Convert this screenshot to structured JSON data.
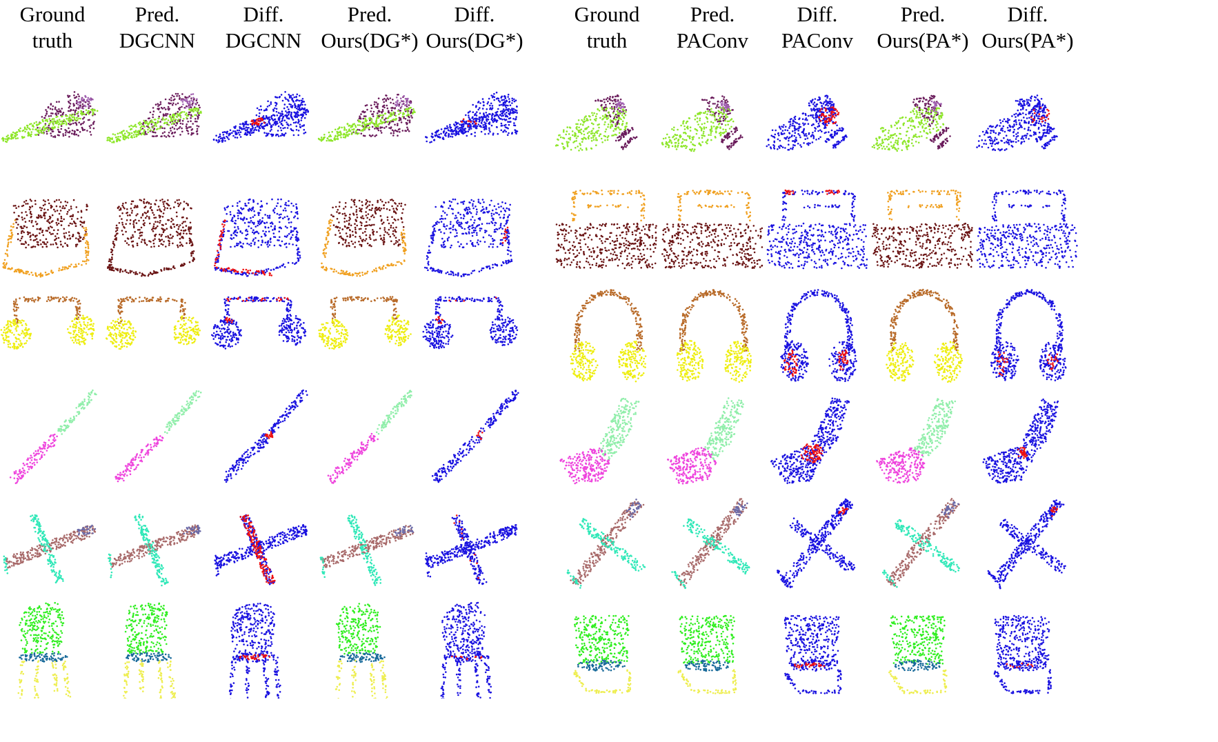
{
  "headers": [
    {
      "line1": "Ground",
      "line2": "truth"
    },
    {
      "line1": "Pred.",
      "line2": "DGCNN"
    },
    {
      "line1": "Diff.",
      "line2": "DGCNN"
    },
    {
      "line1": "Pred.",
      "line2": "Ours(DG*)"
    },
    {
      "line1": "Diff.",
      "line2": "Ours(DG*)"
    },
    {
      "line1": "Ground",
      "line2": "truth"
    },
    {
      "line1": "Pred.",
      "line2": "PAConv"
    },
    {
      "line1": "Diff.",
      "line2": "PAConv"
    },
    {
      "line1": "Pred.",
      "line2": "Ours(PA*)"
    },
    {
      "line1": "Diff.",
      "line2": "Ours(PA*)"
    }
  ],
  "objects": [
    "rocket",
    "bag",
    "earphone",
    "knife",
    "airplane",
    "chair"
  ],
  "colors": {
    "diff_correct": "#1a12e0",
    "diff_wrong": "#ee1111",
    "lime": "#8ee62a",
    "purple": "#6b1d5c",
    "violet": "#a060b0",
    "brown_dark": "#6a1414",
    "orange": "#f0a020",
    "copper": "#b86a28",
    "yellow": "#eeee10",
    "mint": "#90eeaa",
    "magenta": "#ee44dd",
    "rose_brown": "#a86a6a",
    "aqua": "#30e8b8",
    "slate": "#6a6aa8",
    "green": "#30ee20",
    "teal": "#186a9a",
    "pale_yellow": "#eeee50"
  }
}
